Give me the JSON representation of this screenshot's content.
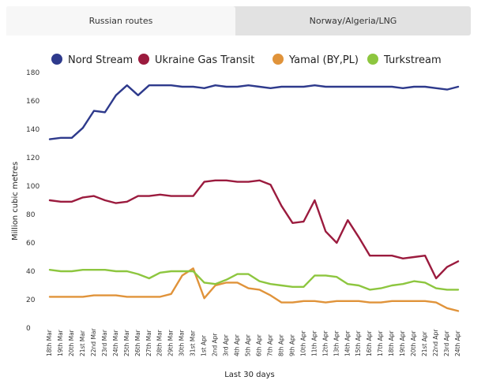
{
  "tabs": [
    {
      "label": "Russian routes",
      "active": true
    },
    {
      "label": "Norway/Algeria/LNG",
      "active": false
    }
  ],
  "chart_data": {
    "type": "line",
    "title": "",
    "xlabel": "Last 30 days",
    "ylabel": "Million cubic metres",
    "ylim": [
      0,
      180
    ],
    "yticks": [
      0,
      20,
      40,
      60,
      80,
      100,
      120,
      140,
      160,
      180
    ],
    "legend_position": "top",
    "grid": false,
    "categories": [
      "18th Mar",
      "19th Mar",
      "20th Mar",
      "21st Mar",
      "22nd Mar",
      "23rd Mar",
      "24th Mar",
      "25th Mar",
      "26th Mar",
      "27th Mar",
      "28th Mar",
      "29th Mar",
      "30th Mar",
      "31st Mar",
      "1st Apr",
      "2nd Apr",
      "3rd Apr",
      "4th Apr",
      "5th Apr",
      "6th Apr",
      "7th Apr",
      "8th Apr",
      "9th Apr",
      "10th Apr",
      "11th Apr",
      "12th Apr",
      "13th Apr",
      "14th Apr",
      "15th Apr",
      "16th Apr",
      "17th Apr",
      "18th Apr",
      "19th Apr",
      "20th Apr",
      "21st Apr",
      "22nd Apr",
      "23rd Apr",
      "24th Apr"
    ],
    "series": [
      {
        "name": "Nord Stream",
        "color": "#2e3a8c",
        "values": [
          133,
          134,
          134,
          141,
          153,
          152,
          164,
          171,
          164,
          171,
          171,
          171,
          170,
          170,
          169,
          171,
          170,
          170,
          171,
          170,
          169,
          170,
          170,
          170,
          171,
          170,
          170,
          170,
          170,
          170,
          170,
          170,
          169,
          170,
          170,
          169,
          168,
          170
        ]
      },
      {
        "name": "Ukraine Gas Transit",
        "color": "#9b1b3e",
        "values": [
          90,
          89,
          89,
          92,
          93,
          90,
          88,
          89,
          93,
          93,
          94,
          93,
          93,
          93,
          103,
          104,
          104,
          103,
          103,
          104,
          101,
          86,
          74,
          75,
          90,
          68,
          60,
          76,
          64,
          51,
          51,
          51,
          49,
          50,
          51,
          35,
          43,
          47
        ]
      },
      {
        "name": "Yamal (BY,PL)",
        "color": "#e0933a",
        "values": [
          22,
          22,
          22,
          22,
          23,
          23,
          23,
          22,
          22,
          22,
          22,
          24,
          37,
          42,
          21,
          30,
          32,
          32,
          28,
          27,
          23,
          18,
          18,
          19,
          19,
          18,
          19,
          19,
          19,
          18,
          18,
          19,
          19,
          19,
          19,
          18,
          14,
          12
        ]
      },
      {
        "name": "Turkstream",
        "color": "#8dc63f",
        "values": [
          41,
          40,
          40,
          41,
          41,
          41,
          40,
          40,
          38,
          35,
          39,
          40,
          40,
          40,
          32,
          31,
          34,
          38,
          38,
          33,
          31,
          30,
          29,
          29,
          37,
          37,
          36,
          31,
          30,
          27,
          28,
          30,
          31,
          33,
          32,
          28,
          27,
          27
        ]
      }
    ]
  }
}
